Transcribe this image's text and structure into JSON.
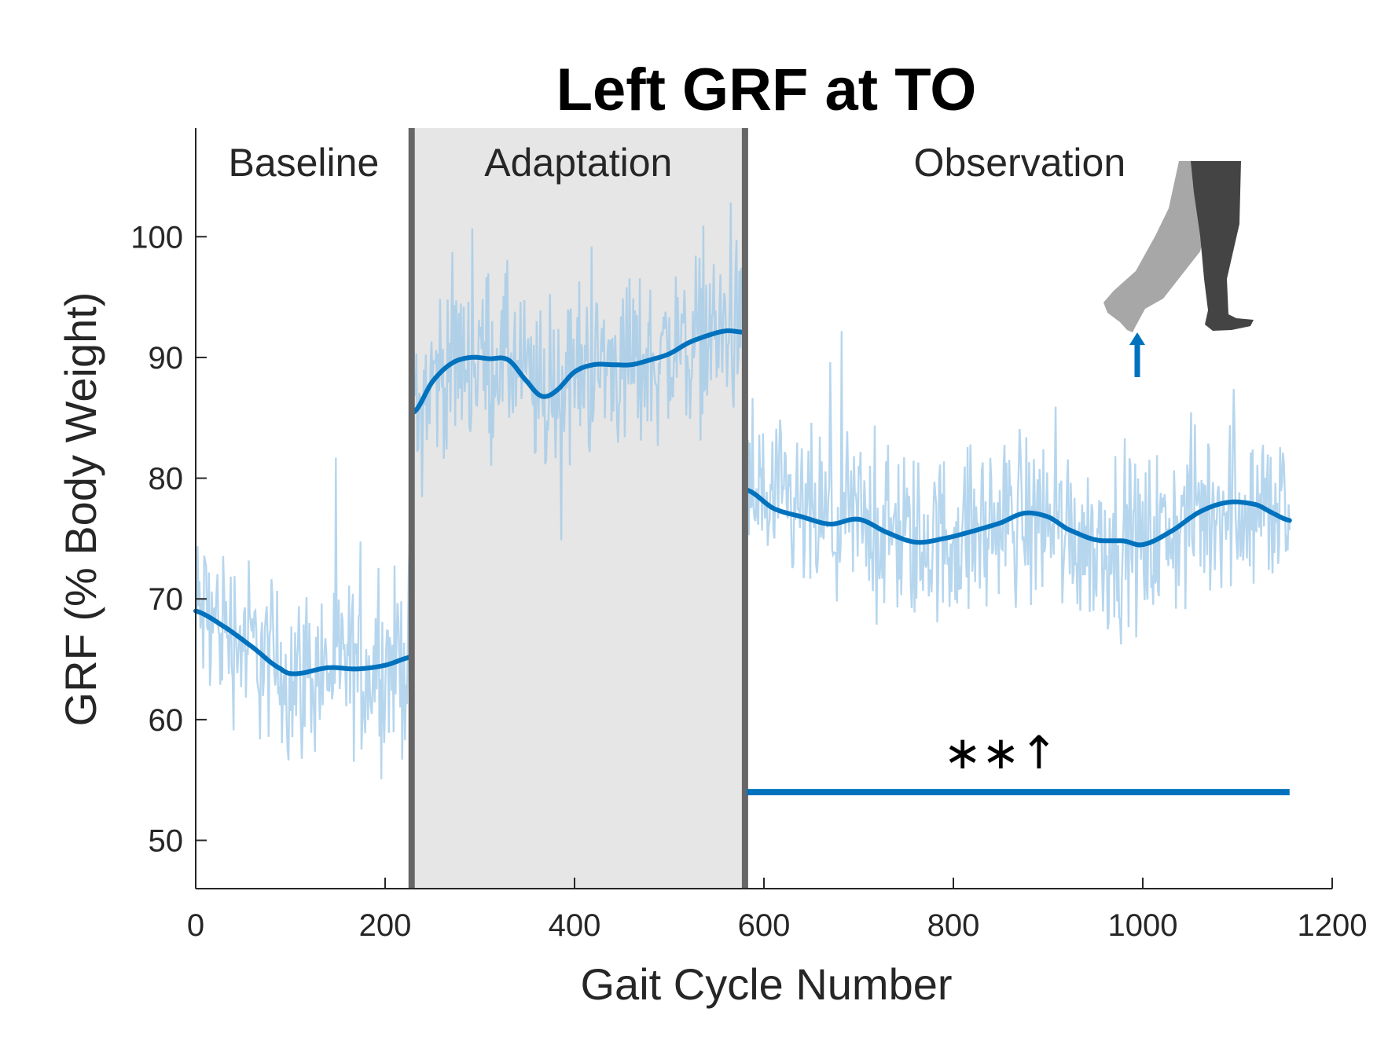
{
  "chart_data": {
    "type": "line",
    "title": "Left GRF at TO",
    "xlabel": "Gait Cycle Number",
    "ylabel": "GRF (% Body Weight)",
    "xlim": [
      0,
      1200
    ],
    "ylim": [
      46,
      109
    ],
    "x_ticks": [
      "0",
      "200",
      "400",
      "600",
      "800",
      "1000",
      "1200"
    ],
    "y_ticks": [
      "50",
      "60",
      "70",
      "80",
      "90",
      "100"
    ],
    "phases": [
      {
        "label": "Baseline",
        "start": 0,
        "end": 228,
        "shaded": false
      },
      {
        "label": "Adaptation",
        "start": 228,
        "end": 580,
        "shaded": true
      },
      {
        "label": "Observation",
        "start": 580,
        "end": 1155,
        "shaded": false
      }
    ],
    "phase_boundaries": [
      228,
      580
    ],
    "series": [
      {
        "kind": "raw",
        "color": "#9ec8e8",
        "noise_amplitude": 3.5
      },
      {
        "kind": "smoothed",
        "color": "#0072bd",
        "segments": [
          {
            "x": [
              0,
              30,
              60,
              90,
              105,
              140,
              170,
              200,
              228
            ],
            "y": [
              69,
              67.7,
              66,
              64.2,
              63.8,
              64.3,
              64.2,
              64.5,
              65.2
            ]
          },
          {
            "x": [
              231,
              250,
              270,
              290,
              310,
              330,
              350,
              365,
              380,
              400,
              420,
              440,
              460,
              480,
              500,
              520,
              540,
              560,
              577
            ],
            "y": [
              85.5,
              88,
              89.5,
              90,
              89.9,
              89.8,
              88,
              86.8,
              87.2,
              88.8,
              89.4,
              89.4,
              89.4,
              89.8,
              90.3,
              91.2,
              91.8,
              92.2,
              92.1
            ]
          },
          {
            "x": [
              583,
              610,
              640,
              670,
              700,
              730,
              760,
              790,
              820,
              850,
              875,
              900,
              920,
              950,
              980,
              1000,
              1030,
              1060,
              1090,
              1120,
              1140,
              1155
            ],
            "y": [
              79,
              77.5,
              76.8,
              76.2,
              76.6,
              75.5,
              74.7,
              75,
              75.6,
              76.3,
              77.1,
              76.8,
              75.8,
              74.9,
              74.8,
              74.5,
              75.6,
              77.2,
              78,
              77.8,
              77,
              76.5
            ]
          }
        ]
      }
    ],
    "significance": {
      "label": "∗∗↑",
      "x_start": 582,
      "x_end": 1155,
      "y": 54,
      "color": "#0072bd"
    }
  },
  "illustration": {
    "icon": "legs-toe-off-icon",
    "arrow_color": "#0072bd"
  }
}
